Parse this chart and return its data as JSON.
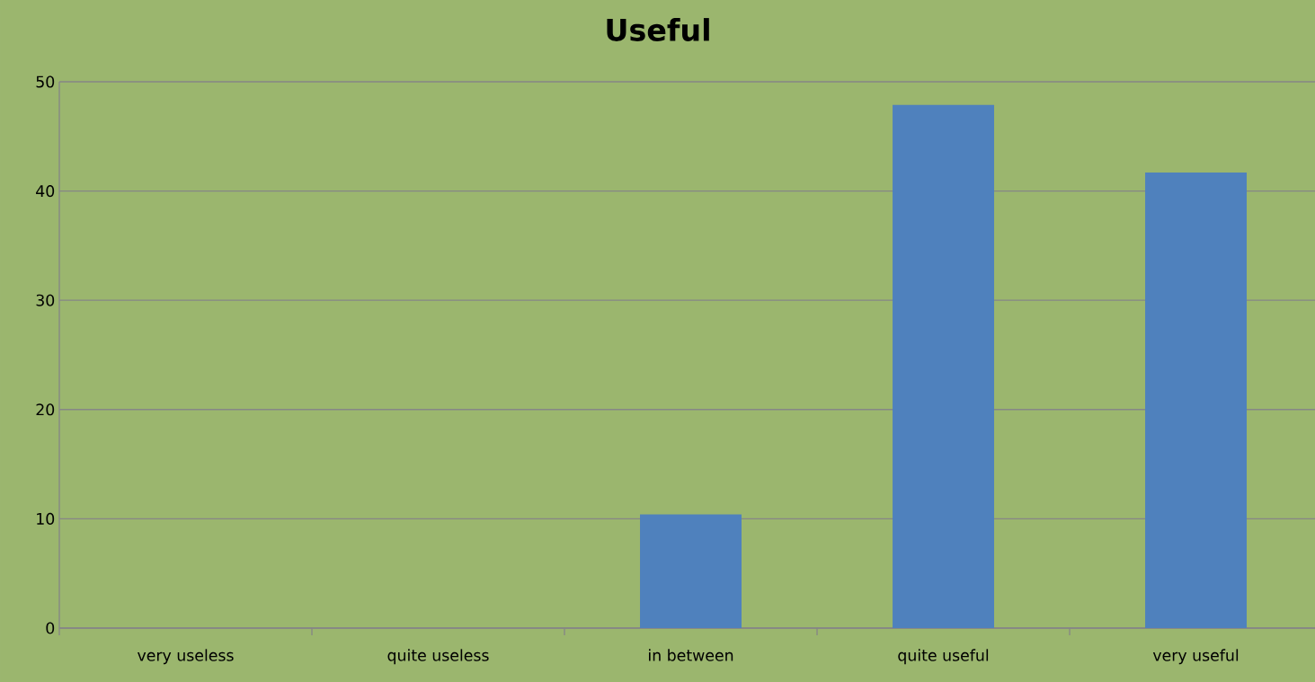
{
  "chart_data": {
    "type": "bar",
    "title": "Useful",
    "categories": [
      "very useless",
      "quite useless",
      "in between",
      "quite useful",
      "very useful"
    ],
    "values": [
      0,
      0,
      10.4,
      47.9,
      41.7
    ],
    "color": "#4f81bd",
    "ylim": [
      0,
      50
    ],
    "yticks": [
      0,
      10,
      20,
      30,
      40,
      50
    ],
    "grid": "y"
  }
}
